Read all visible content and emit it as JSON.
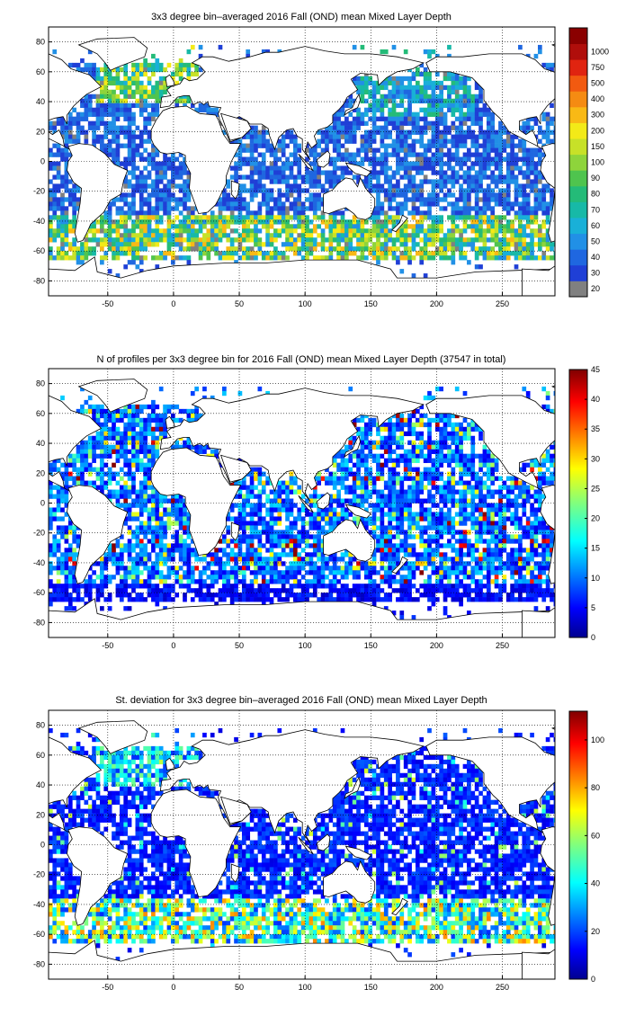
{
  "panels": [
    {
      "id": "mean",
      "title": "3x3 degree bin–averaged 2016 Fall (OND) mean Mixed Layer Depth",
      "x_ticks": [
        "-50",
        "0",
        "50",
        "100",
        "150",
        "200",
        "250"
      ],
      "y_ticks": [
        "80",
        "60",
        "40",
        "20",
        "0",
        "-20",
        "-40",
        "-60",
        "-80"
      ],
      "colorbar_ticks": [
        "1000",
        "750",
        "500",
        "400",
        "300",
        "200",
        "150",
        "100",
        "90",
        "80",
        "70",
        "60",
        "50",
        "40",
        "30",
        "20"
      ],
      "colorbar_type": "discrete",
      "colorbar_colors": [
        "#808080",
        "#1f3fd6",
        "#1f67e0",
        "#2190e6",
        "#19b0d8",
        "#17b9a7",
        "#24bb78",
        "#4fc44e",
        "#8ed43b",
        "#c7e128",
        "#f3ea18",
        "#f9b915",
        "#f58b12",
        "#f25a10",
        "#e02410",
        "#b00e0b",
        "#8a0000"
      ]
    },
    {
      "id": "count",
      "title": "N of profiles per 3x3 degree bin for 2016 Fall (OND) mean Mixed Layer Depth  (37547 in total)",
      "x_ticks": [
        "-50",
        "0",
        "50",
        "100",
        "150",
        "200",
        "250"
      ],
      "y_ticks": [
        "80",
        "60",
        "40",
        "20",
        "0",
        "-20",
        "-40",
        "-60",
        "-80"
      ],
      "colorbar_ticks": [
        "45",
        "40",
        "35",
        "30",
        "25",
        "20",
        "15",
        "10",
        "5",
        "0"
      ],
      "colorbar_type": "continuous"
    },
    {
      "id": "stdev",
      "title": "St. deviation for 3x3 degree bin–averaged 2016 Fall (OND) mean Mixed Layer Depth",
      "x_ticks": [
        "-50",
        "0",
        "50",
        "100",
        "150",
        "200",
        "250"
      ],
      "y_ticks": [
        "80",
        "60",
        "40",
        "20",
        "0",
        "-20",
        "-40",
        "-60",
        "-80"
      ],
      "colorbar_ticks": [
        "100",
        "80",
        "60",
        "40",
        "20",
        "0"
      ],
      "colorbar_type": "continuous"
    }
  ],
  "map_domain": {
    "lon_range": [
      -95,
      290
    ],
    "lat_range": [
      -90,
      90
    ],
    "bin_size_deg": 3
  }
}
